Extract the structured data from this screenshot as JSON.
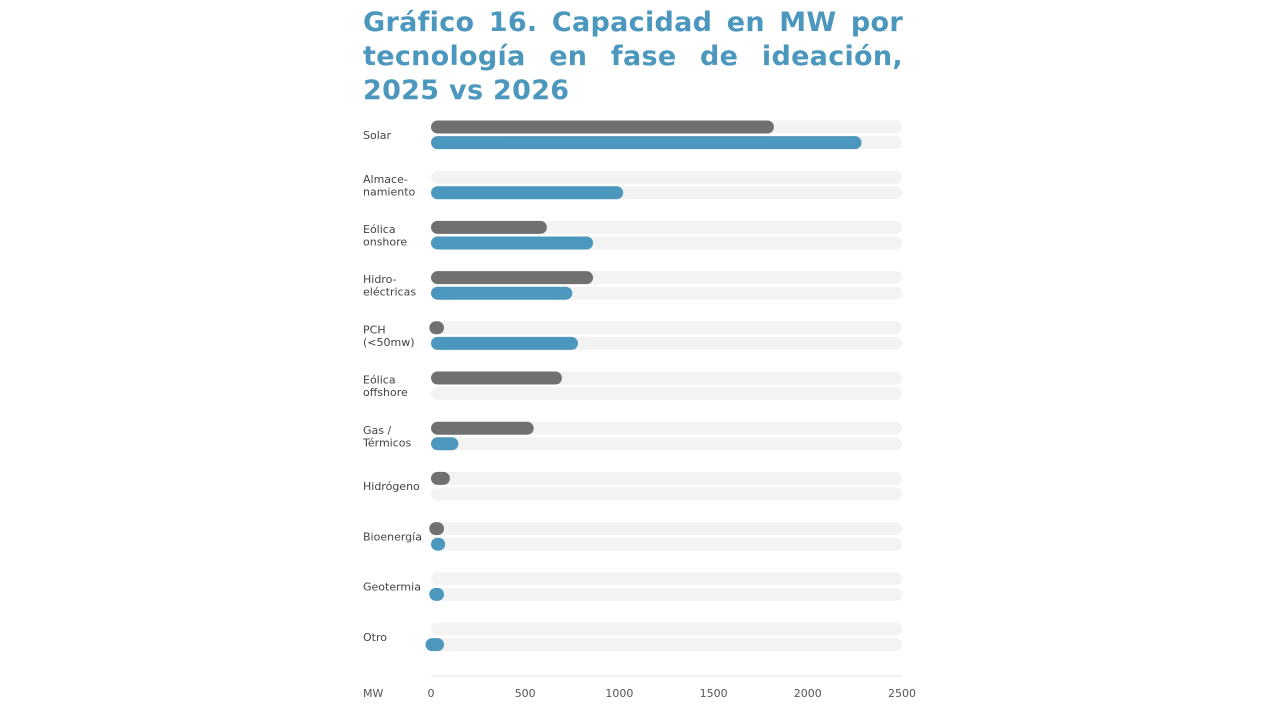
{
  "chart_data": {
    "type": "bar",
    "orientation": "horizontal",
    "title": "Gráfico 16. Capacidad en MW por tecnología en fase de ideación, 2025 vs 2026",
    "xlabel": "MW",
    "ylabel": "",
    "xlim": [
      0,
      2500
    ],
    "xticks": [
      "0",
      "500",
      "1000",
      "1500",
      "2000",
      "2500"
    ],
    "grid": false,
    "legend": "none",
    "categories": [
      [
        "Solar"
      ],
      [
        "Almace-",
        "namiento"
      ],
      [
        "Eólica",
        "onshore"
      ],
      [
        "Hidro-",
        "eléctricas"
      ],
      [
        "PCH",
        "(<50mw)"
      ],
      [
        "Eólica",
        "offshore"
      ],
      [
        "Gas /",
        "Térmicos"
      ],
      [
        "Hidrógeno"
      ],
      [
        "Bioenergía"
      ],
      [
        "Geotermia"
      ],
      [
        "Otro"
      ]
    ],
    "series": [
      {
        "color": "#707070",
        "values": [
          1820,
          0,
          615,
          860,
          60,
          695,
          545,
          100,
          60,
          0,
          0
        ]
      },
      {
        "color": "#4b97bd",
        "values": [
          2285,
          1020,
          860,
          750,
          780,
          0,
          145,
          0,
          75,
          60,
          30
        ]
      }
    ],
    "track_color": "#f3f3f3"
  }
}
